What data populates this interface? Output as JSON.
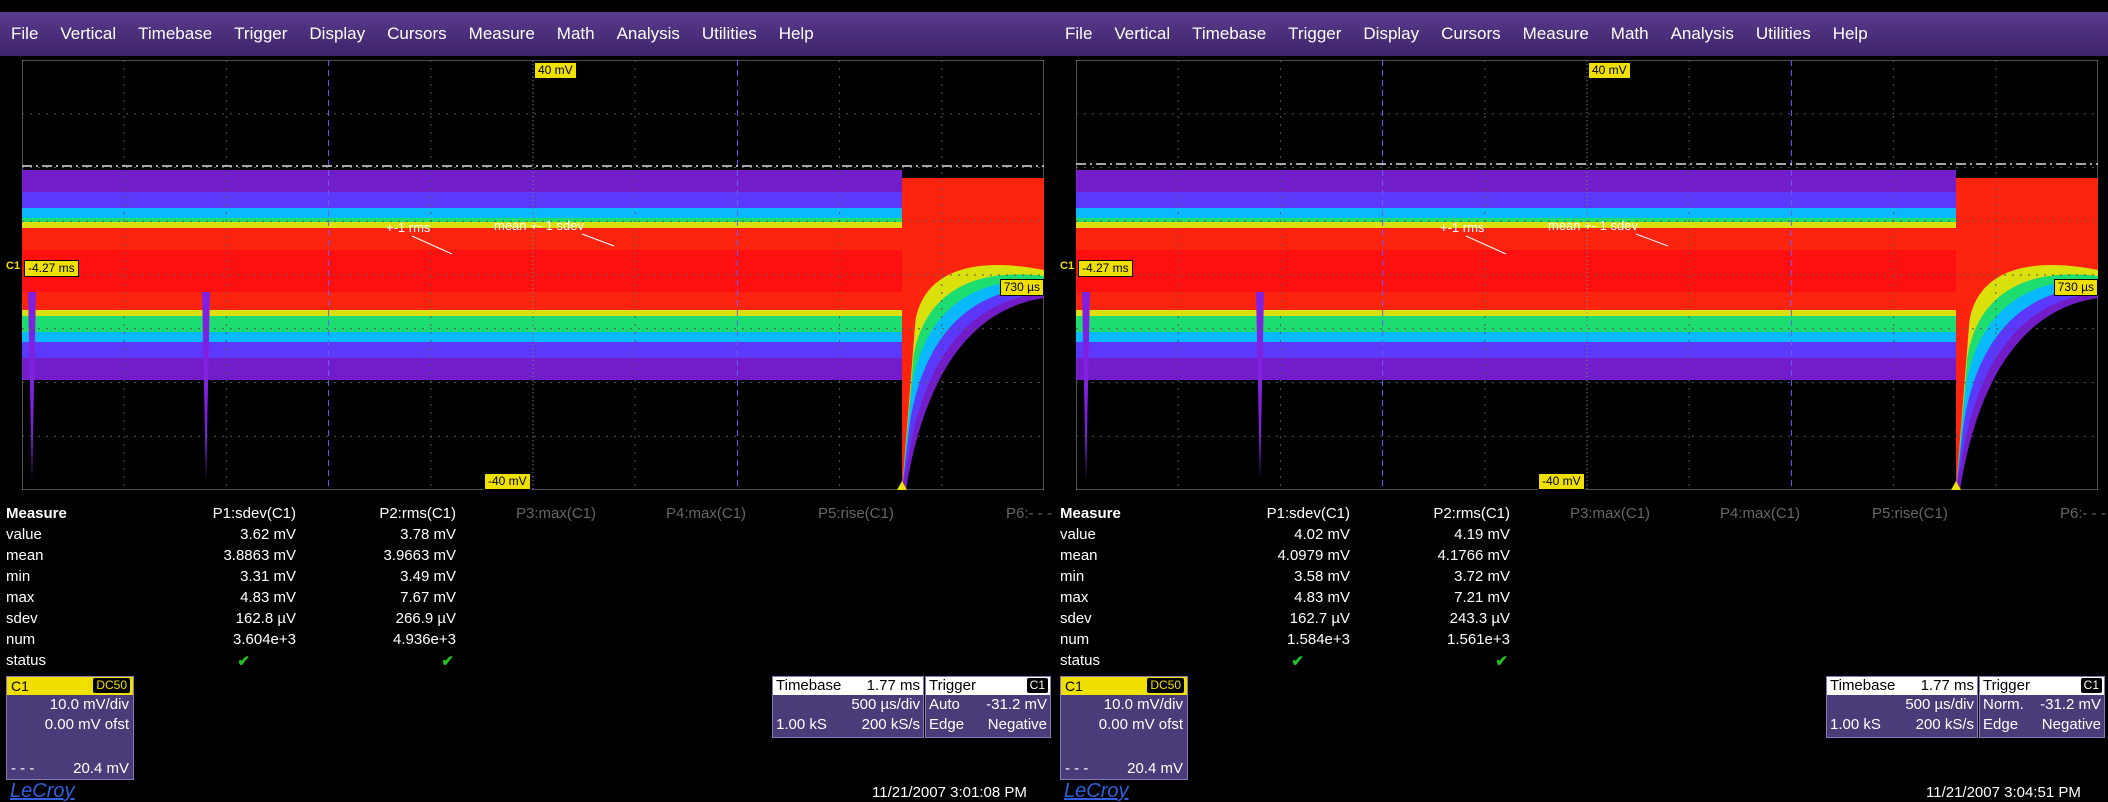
{
  "menu": [
    "File",
    "Vertical",
    "Timebase",
    "Trigger",
    "Display",
    "Cursors",
    "Measure",
    "Math",
    "Analysis",
    "Utilities",
    "Help"
  ],
  "colors": {
    "accent": "#f0e000",
    "menubar": "#4a2e7a",
    "panel": "#4a3c78",
    "check": "#22c422",
    "logo": "#3060e0"
  },
  "scopes": [
    {
      "grid": {
        "top_label": "40 mV",
        "bottom_label": "-40 mV",
        "left_label": "-4.27 ms",
        "right_label": "730 µs",
        "channel_marker": "C1"
      },
      "annotations": {
        "rms": "+-1 rms",
        "sdev": "mean +- 1 sdev"
      },
      "measure": {
        "title": "Measure",
        "params": [
          "P1:sdev(C1)",
          "P2:rms(C1)",
          "P3:max(C1)",
          "P4:max(C1)",
          "P5:rise(C1)",
          "P6:- - -"
        ],
        "rows": [
          {
            "label": "value",
            "p1": "3.62 mV",
            "p2": "3.78 mV"
          },
          {
            "label": "mean",
            "p1": "3.8863 mV",
            "p2": "3.9663 mV"
          },
          {
            "label": "min",
            "p1": "3.31 mV",
            "p2": "3.49 mV"
          },
          {
            "label": "max",
            "p1": "4.83 mV",
            "p2": "7.67 mV"
          },
          {
            "label": "sdev",
            "p1": "162.8 µV",
            "p2": "266.9 µV"
          },
          {
            "label": "num",
            "p1": "3.604e+3",
            "p2": "4.936e+3"
          },
          {
            "label": "status",
            "p1": "✔",
            "p2": "✔"
          }
        ]
      },
      "channel": {
        "name": "C1",
        "coupling": "DC50",
        "scale": "10.0 mV/div",
        "offset": "0.00 mV ofst",
        "footer_left": "- - -",
        "footer_right": "20.4 mV"
      },
      "timebase": {
        "title": "Timebase",
        "delay": "1.77 ms",
        "per_div": "500 µs/div",
        "samples": "1.00 kS",
        "rate": "200 kS/s"
      },
      "trigger": {
        "title": "Trigger",
        "source": "C1",
        "mode": "Auto",
        "level": "-31.2 mV",
        "type": "Edge",
        "slope": "Negative"
      },
      "datetime": "11/21/2007 3:01:08 PM",
      "logo": "LeCroy"
    },
    {
      "grid": {
        "top_label": "40 mV",
        "bottom_label": "-40 mV",
        "left_label": "-4.27 ms",
        "right_label": "730 µs",
        "channel_marker": "C1"
      },
      "annotations": {
        "rms": "+-1 rms",
        "sdev": "mean +- 1 sdev"
      },
      "measure": {
        "title": "Measure",
        "params": [
          "P1:sdev(C1)",
          "P2:rms(C1)",
          "P3:max(C1)",
          "P4:max(C1)",
          "P5:rise(C1)",
          "P6:- - -"
        ],
        "rows": [
          {
            "label": "value",
            "p1": "4.02 mV",
            "p2": "4.19 mV"
          },
          {
            "label": "mean",
            "p1": "4.0979 mV",
            "p2": "4.1766 mV"
          },
          {
            "label": "min",
            "p1": "3.58 mV",
            "p2": "3.72 mV"
          },
          {
            "label": "max",
            "p1": "4.83 mV",
            "p2": "7.21 mV"
          },
          {
            "label": "sdev",
            "p1": "162.7 µV",
            "p2": "243.3 µV"
          },
          {
            "label": "num",
            "p1": "1.584e+3",
            "p2": "1.561e+3"
          },
          {
            "label": "status",
            "p1": "✔",
            "p2": "✔"
          }
        ]
      },
      "channel": {
        "name": "C1",
        "coupling": "DC50",
        "scale": "10.0 mV/div",
        "offset": "0.00 mV ofst",
        "footer_left": "- - -",
        "footer_right": "20.4 mV"
      },
      "timebase": {
        "title": "Timebase",
        "delay": "1.77 ms",
        "per_div": "500 µs/div",
        "samples": "1.00 kS",
        "rate": "200 kS/s"
      },
      "trigger": {
        "title": "Trigger",
        "source": "C1",
        "mode": "Norm.",
        "level": "-31.2 mV",
        "type": "Edge",
        "slope": "Negative"
      },
      "datetime": "11/21/2007 3:04:51 PM",
      "logo": "LeCroy"
    }
  ]
}
